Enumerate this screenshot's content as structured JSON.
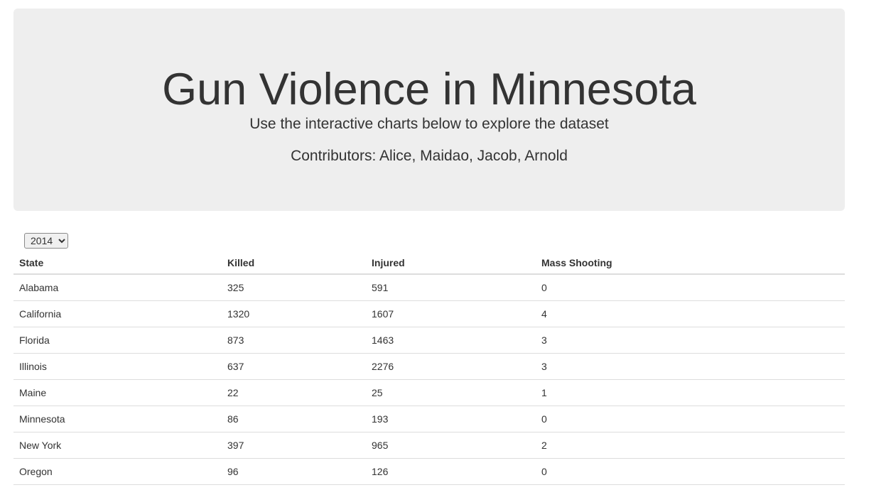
{
  "header": {
    "title": "Gun Violence in Minnesota",
    "subtitle": "Use the interactive charts below to explore the dataset",
    "contributors": "Contributors: Alice, Maidao, Jacob, Arnold"
  },
  "controls": {
    "year_selected": "2014"
  },
  "table": {
    "columns": [
      "State",
      "Killed",
      "Injured",
      "Mass Shooting"
    ],
    "rows": [
      [
        "Alabama",
        "325",
        "591",
        "0"
      ],
      [
        "California",
        "1320",
        "1607",
        "4"
      ],
      [
        "Florida",
        "873",
        "1463",
        "3"
      ],
      [
        "Illinois",
        "637",
        "2276",
        "3"
      ],
      [
        "Maine",
        "22",
        "25",
        "1"
      ],
      [
        "Minnesota",
        "86",
        "193",
        "0"
      ],
      [
        "New York",
        "397",
        "965",
        "2"
      ],
      [
        "Oregon",
        "96",
        "126",
        "0"
      ]
    ]
  }
}
